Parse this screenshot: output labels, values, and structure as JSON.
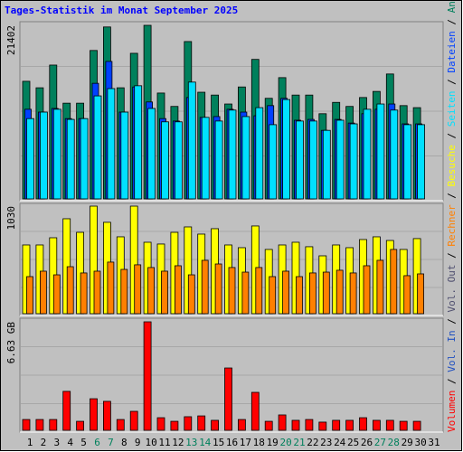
{
  "chart_data": [
    {
      "type": "bar",
      "title": "Tages-Statistik im Monat September 2025",
      "title_color": "#0000ff",
      "ylim": [
        0,
        21402
      ],
      "yticks": [
        21402
      ],
      "series": [
        {
          "name": "Anfragen",
          "color": "#00805c",
          "values": [
            14500,
            13700,
            16500,
            11800,
            11800,
            18300,
            21200,
            13700,
            17950,
            21402,
            13050,
            11400,
            19400,
            13150,
            12800,
            11700,
            13800,
            17200,
            12400,
            14950,
            12800,
            12800,
            10500,
            11900,
            11400,
            12500,
            13250,
            15400,
            11500,
            11250,
            null
          ]
        },
        {
          "name": "Dateien",
          "color": "#0040ff",
          "values": [
            11050,
            10700,
            11150,
            9900,
            9900,
            14250,
            16950,
            10700,
            13800,
            11950,
            9900,
            9600,
            12500,
            10050,
            10150,
            11050,
            10700,
            10250,
            11500,
            12400,
            9700,
            9800,
            8450,
            9800,
            9350,
            10500,
            11050,
            11700,
            9250,
            9250,
            null
          ]
        },
        {
          "name": "Seiten",
          "color": "#00e0ff",
          "values": [
            9900,
            10700,
            11050,
            9800,
            9900,
            12700,
            13600,
            10700,
            13950,
            11150,
            9500,
            9500,
            14400,
            10050,
            9600,
            10950,
            10150,
            11250,
            9150,
            12250,
            9600,
            9600,
            8450,
            9700,
            9250,
            11050,
            11700,
            10950,
            9150,
            9150,
            null
          ]
        }
      ]
    },
    {
      "type": "bar",
      "ylim": [
        0,
        1030
      ],
      "yticks": [
        1030
      ],
      "series": [
        {
          "name": "Besuche",
          "color": "#ffff00",
          "values": [
            658,
            658,
            727,
            909,
            779,
            1030,
            875,
            736,
            1030,
            684,
            667,
            779,
            831,
            762,
            814,
            658,
            632,
            840,
            615,
            658,
            684,
            641,
            554,
            658,
            632,
            710,
            736,
            701,
            615,
            719,
            null
          ]
        },
        {
          "name": "Rechner",
          "color": "#ff8000",
          "values": [
            355,
            407,
            372,
            450,
            390,
            407,
            494,
            424,
            468,
            442,
            407,
            459,
            372,
            511,
            476,
            442,
            398,
            442,
            355,
            407,
            355,
            390,
            398,
            416,
            390,
            459,
            511,
            615,
            364,
            381,
            null
          ]
        }
      ]
    },
    {
      "type": "bar",
      "ylim": [
        0,
        6.63
      ],
      "yticks": [
        {
          "value": 6.63,
          "label": "6.63 GB"
        }
      ],
      "categories": [
        "1",
        "2",
        "3",
        "4",
        "5",
        "6",
        "7",
        "8",
        "9",
        "10",
        "11",
        "12",
        "13",
        "14",
        "15",
        "16",
        "17",
        "18",
        "19",
        "20",
        "21",
        "22",
        "23",
        "24",
        "25",
        "26",
        "27",
        "28",
        "29",
        "30",
        "31"
      ],
      "weekend_categories": [
        "6",
        "7",
        "13",
        "14",
        "20",
        "21",
        "27",
        "28"
      ],
      "weekend_color": "#00805c",
      "series": [
        {
          "name": "Volumen",
          "color": "#ff0000",
          "values": [
            0.66,
            0.66,
            0.66,
            2.38,
            0.55,
            1.93,
            1.77,
            0.66,
            1.16,
            6.63,
            0.77,
            0.55,
            0.83,
            0.88,
            0.61,
            3.81,
            0.66,
            2.32,
            0.55,
            0.94,
            0.61,
            0.66,
            0.5,
            0.61,
            0.61,
            0.77,
            0.61,
            0.61,
            0.55,
            0.55,
            null
          ]
        },
        {
          "name": "Vol. In",
          "color": "#2050c0",
          "values": [
            null,
            null,
            null,
            null,
            null,
            null,
            null,
            null,
            null,
            null,
            null,
            null,
            null,
            null,
            null,
            null,
            null,
            null,
            null,
            null,
            null,
            null,
            null,
            null,
            null,
            null,
            null,
            null,
            null,
            null,
            null
          ]
        },
        {
          "name": "Vol. Out",
          "color": "#505070",
          "values": [
            null,
            null,
            null,
            null,
            null,
            null,
            null,
            null,
            null,
            null,
            null,
            null,
            null,
            null,
            null,
            null,
            null,
            null,
            null,
            null,
            null,
            null,
            null,
            null,
            null,
            null,
            null,
            null,
            null,
            null,
            null
          ]
        }
      ]
    }
  ],
  "legend_separator": " / "
}
